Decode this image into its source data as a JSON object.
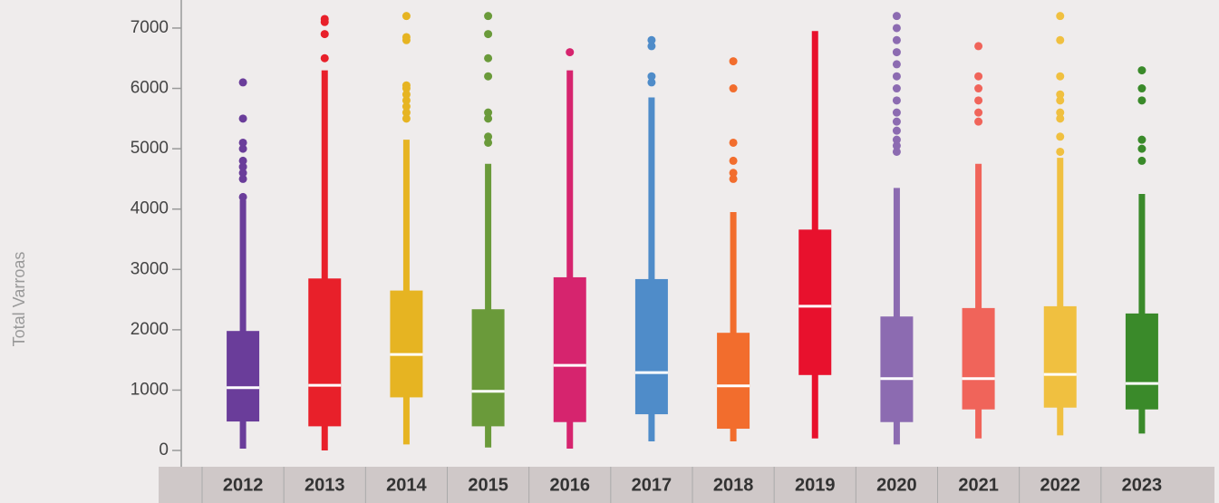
{
  "chart_data": {
    "type": "box",
    "y_label": "Total Varroas",
    "categories": [
      "2012",
      "2013",
      "2014",
      "2015",
      "2016",
      "2017",
      "2018",
      "2019",
      "2020",
      "2021",
      "2022",
      "2023"
    ],
    "ylim": [
      -270,
      7465
    ],
    "yticks": [
      0,
      1000,
      2000,
      3000,
      4000,
      5000,
      6000,
      7000
    ],
    "boxes": [
      {
        "color": "#6a3d9a",
        "whislo": 30,
        "q1": 480,
        "med": 1040,
        "q3": 1980,
        "whishi": 4150,
        "fliers": [
          4200,
          4500,
          4600,
          4700,
          4800,
          5000,
          5100,
          5500,
          6100
        ]
      },
      {
        "color": "#e8202a",
        "whislo": 0,
        "q1": 400,
        "med": 1080,
        "q3": 2850,
        "whishi": 6300,
        "fliers": [
          6500,
          6900,
          7100,
          7150
        ]
      },
      {
        "color": "#e6b422",
        "whislo": 100,
        "q1": 880,
        "med": 1590,
        "q3": 2650,
        "whishi": 5150,
        "fliers": [
          5500,
          5600,
          5700,
          5800,
          5900,
          6000,
          6050,
          6800,
          6850,
          7200
        ]
      },
      {
        "color": "#6a9a3a",
        "whislo": 50,
        "q1": 400,
        "med": 980,
        "q3": 2340,
        "whishi": 4750,
        "fliers": [
          5100,
          5200,
          5500,
          5600,
          6200,
          6500,
          6900,
          7200
        ]
      },
      {
        "color": "#d6246e",
        "whislo": 30,
        "q1": 470,
        "med": 1410,
        "q3": 2870,
        "whishi": 6300,
        "fliers": [
          6600
        ]
      },
      {
        "color": "#4f8cc9",
        "whislo": 150,
        "q1": 600,
        "med": 1290,
        "q3": 2840,
        "whishi": 5850,
        "fliers": [
          6100,
          6200,
          6700,
          6800
        ]
      },
      {
        "color": "#f26d2d",
        "whislo": 150,
        "q1": 360,
        "med": 1070,
        "q3": 1950,
        "whishi": 3950,
        "fliers": [
          4500,
          4600,
          4800,
          5100,
          6000,
          6450
        ]
      },
      {
        "color": "#e8112d",
        "whislo": 200,
        "q1": 1250,
        "med": 2390,
        "q3": 3660,
        "whishi": 6950,
        "fliers": []
      },
      {
        "color": "#8c6bb1",
        "whislo": 100,
        "q1": 470,
        "med": 1190,
        "q3": 2220,
        "whishi": 4350,
        "fliers": [
          4950,
          5050,
          5150,
          5300,
          5450,
          5600,
          5800,
          6000,
          6200,
          6400,
          6600,
          6800,
          7000,
          7200
        ]
      },
      {
        "color": "#f0645a",
        "whislo": 200,
        "q1": 680,
        "med": 1190,
        "q3": 2360,
        "whishi": 4750,
        "fliers": [
          5450,
          5600,
          5800,
          6000,
          6200,
          6700
        ]
      },
      {
        "color": "#f0c040",
        "whislo": 250,
        "q1": 710,
        "med": 1260,
        "q3": 2390,
        "whishi": 4850,
        "fliers": [
          4950,
          5200,
          5500,
          5600,
          5800,
          5900,
          6200,
          6800,
          7200
        ]
      },
      {
        "color": "#3a8a2a",
        "whislo": 280,
        "q1": 680,
        "med": 1110,
        "q3": 2270,
        "whishi": 4250,
        "fliers": [
          4800,
          5000,
          5150,
          5800,
          6000,
          6300
        ]
      }
    ]
  }
}
